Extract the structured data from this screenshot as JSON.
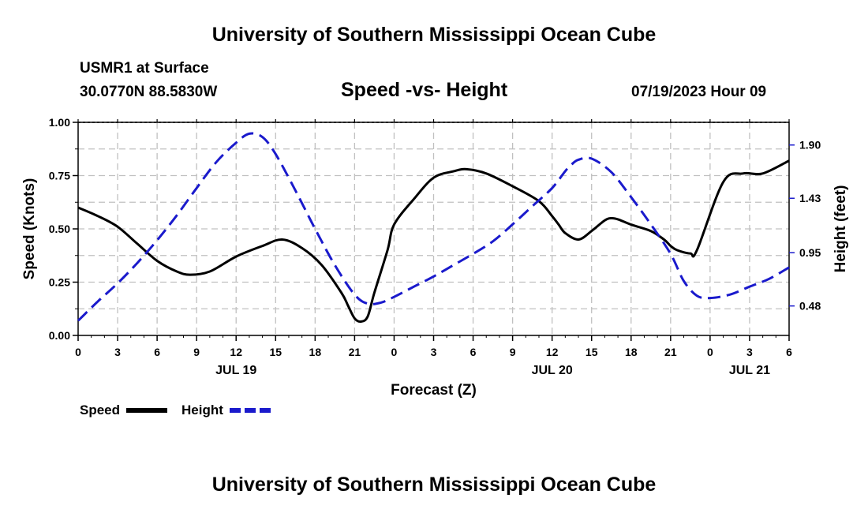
{
  "page": {
    "title_top": "University of Southern Mississippi Ocean Cube",
    "title_bottom": "University of Southern Mississippi Ocean Cube",
    "station": "USMR1 at Surface",
    "coords": "30.0770N  88.5830W",
    "subtitle": "Speed -vs- Height",
    "date": "07/19/2023 Hour 09"
  },
  "chart_data": {
    "type": "line",
    "title": "Speed -vs- Height",
    "xlabel": "Forecast (Z)",
    "ylabel": "Speed (Knots)",
    "y2label": "Height (feet)",
    "xlim": [
      0,
      54
    ],
    "ylim": [
      0,
      1.0
    ],
    "y2lim": [
      0.22,
      2.1
    ],
    "grid": true,
    "x_tick_hours": [
      0,
      3,
      6,
      9,
      12,
      15,
      18,
      21,
      24,
      27,
      30,
      33,
      36,
      39,
      42,
      45,
      48,
      51,
      54
    ],
    "x_tick_labels": [
      "0",
      "3",
      "6",
      "9",
      "12",
      "15",
      "18",
      "21",
      "0",
      "3",
      "6",
      "9",
      "12",
      "15",
      "18",
      "21",
      "0",
      "3",
      "6"
    ],
    "date_labels": [
      {
        "hour": 12,
        "label": "JUL 19"
      },
      {
        "hour": 36,
        "label": "JUL 20"
      },
      {
        "hour": 51,
        "label": "JUL 21"
      }
    ],
    "y_ticks": [
      0,
      0.25,
      0.5,
      0.75,
      1.0
    ],
    "y_tick_labels": [
      "0.00",
      "0.25",
      "0.50",
      "0.75",
      "1.00"
    ],
    "y2_ticks": [
      0.48,
      0.95,
      1.43,
      1.9
    ],
    "y2_tick_labels": [
      "0.48",
      "0.95",
      "1.43",
      "1.90"
    ],
    "legend": [
      {
        "name": "Speed",
        "color": "#000000",
        "dash": "solid"
      },
      {
        "name": "Height",
        "color": "#1a1acc",
        "dash": "dashed"
      }
    ],
    "series": [
      {
        "name": "Speed",
        "axis": "left",
        "color": "#000000",
        "x": [
          0,
          1.5,
          3,
          4.5,
          6,
          7.5,
          8.5,
          10,
          12,
          14,
          15.5,
          17,
          18.5,
          20,
          20.5,
          21,
          21.5,
          22,
          22.5,
          23.5,
          24,
          25.5,
          27,
          28.5,
          29.5,
          31,
          33,
          35,
          36,
          36.5,
          37,
          38,
          39,
          40,
          40.5,
          41,
          42,
          43.5,
          44.5,
          45,
          45.5,
          46.5,
          47,
          49,
          50.5,
          52,
          54
        ],
        "values": [
          0.6,
          0.56,
          0.51,
          0.43,
          0.35,
          0.3,
          0.285,
          0.3,
          0.37,
          0.42,
          0.45,
          0.41,
          0.33,
          0.2,
          0.14,
          0.08,
          0.065,
          0.09,
          0.2,
          0.4,
          0.52,
          0.64,
          0.74,
          0.77,
          0.78,
          0.76,
          0.7,
          0.63,
          0.56,
          0.52,
          0.48,
          0.45,
          0.49,
          0.54,
          0.55,
          0.545,
          0.52,
          0.49,
          0.45,
          0.42,
          0.4,
          0.385,
          0.4,
          0.72,
          0.76,
          0.76,
          0.82
        ]
      },
      {
        "name": "Height",
        "axis": "right",
        "color": "#1a1acc",
        "x": [
          0,
          1.5,
          3,
          4.5,
          6,
          7.5,
          9,
          10.5,
          12,
          13,
          14,
          15,
          16.5,
          18,
          19.5,
          21,
          22,
          23,
          24,
          25.5,
          27,
          28.5,
          30,
          31.5,
          33,
          34.5,
          36,
          37,
          37.5,
          38,
          39,
          40.5,
          42,
          43.5,
          45,
          46,
          47,
          48,
          49.5,
          51,
          52.5,
          54
        ],
        "values": [
          0.35,
          0.52,
          0.68,
          0.86,
          1.06,
          1.28,
          1.52,
          1.75,
          1.92,
          2.0,
          1.97,
          1.82,
          1.5,
          1.16,
          0.84,
          0.58,
          0.5,
          0.51,
          0.56,
          0.65,
          0.74,
          0.84,
          0.94,
          1.05,
          1.2,
          1.36,
          1.52,
          1.67,
          1.73,
          1.77,
          1.78,
          1.66,
          1.44,
          1.2,
          0.94,
          0.7,
          0.57,
          0.55,
          0.58,
          0.65,
          0.72,
          0.82
        ]
      }
    ]
  }
}
